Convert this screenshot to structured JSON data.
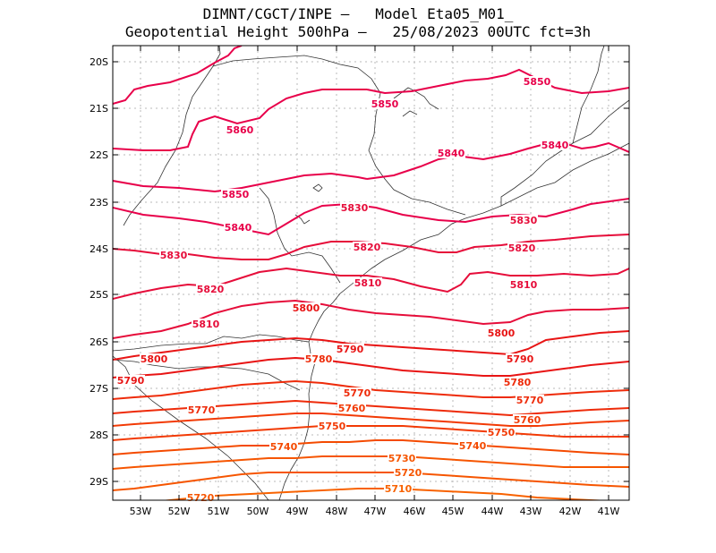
{
  "title_line1": "DIMNT/CGCT/INPE –   Model Eta05_M01_",
  "title_line2": "Geopotential Height 500hPa –   25/08/2023 00UTC fct=3h",
  "lon_ticks": [
    "53W",
    "52W",
    "51W",
    "50W",
    "49W",
    "48W",
    "47W",
    "46W",
    "45W",
    "44W",
    "43W",
    "42W",
    "41W"
  ],
  "lat_ticks": [
    "20S",
    "21S",
    "22S",
    "23S",
    "24S",
    "25S",
    "26S",
    "27S",
    "28S",
    "29S"
  ],
  "contour_labels": [
    {
      "text": "5850",
      "color": "#e8004a"
    },
    {
      "text": "5850",
      "color": "#e8004a"
    },
    {
      "text": "5860",
      "color": "#e8004a"
    },
    {
      "text": "5840",
      "color": "#e8004a"
    },
    {
      "text": "5840",
      "color": "#e8004a"
    },
    {
      "text": "5850",
      "color": "#e8004a"
    },
    {
      "text": "5840",
      "color": "#e8004a"
    },
    {
      "text": "5830",
      "color": "#e60d3a"
    },
    {
      "text": "5830",
      "color": "#e60d3a"
    },
    {
      "text": "5830",
      "color": "#e60d3a"
    },
    {
      "text": "5820",
      "color": "#e60d3a"
    },
    {
      "text": "5820",
      "color": "#e60d3a"
    },
    {
      "text": "5820",
      "color": "#e60d3a"
    },
    {
      "text": "5810",
      "color": "#e60d3a"
    },
    {
      "text": "5810",
      "color": "#e60d3a"
    },
    {
      "text": "5810",
      "color": "#e60d3a"
    },
    {
      "text": "5800",
      "color": "#e81414"
    },
    {
      "text": "5800",
      "color": "#e81414"
    },
    {
      "text": "5800",
      "color": "#e81414"
    },
    {
      "text": "5790",
      "color": "#e81414"
    },
    {
      "text": "5790",
      "color": "#e81414"
    },
    {
      "text": "5790",
      "color": "#e81414"
    },
    {
      "text": "5780",
      "color": "#ee2b0a"
    },
    {
      "text": "5780",
      "color": "#ee2b0a"
    },
    {
      "text": "5770",
      "color": "#ee2b0a"
    },
    {
      "text": "5770",
      "color": "#ee2b0a"
    },
    {
      "text": "5770",
      "color": "#ee2b0a"
    },
    {
      "text": "5760",
      "color": "#f23a05"
    },
    {
      "text": "5760",
      "color": "#f23a05"
    },
    {
      "text": "5750",
      "color": "#f23a05"
    },
    {
      "text": "5750",
      "color": "#f23a05"
    },
    {
      "text": "5740",
      "color": "#f44a00"
    },
    {
      "text": "5740",
      "color": "#f44a00"
    },
    {
      "text": "5730",
      "color": "#f65500"
    },
    {
      "text": "5720",
      "color": "#f65500"
    },
    {
      "text": "5720",
      "color": "#f65500"
    },
    {
      "text": "5710",
      "color": "#f86200"
    }
  ],
  "colors": {
    "frame": "#000000",
    "grid": "#b8b8b8",
    "coast": "#333333"
  }
}
